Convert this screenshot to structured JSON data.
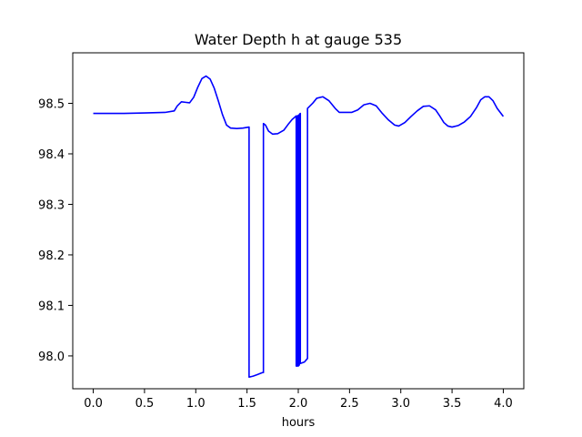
{
  "chart_data": {
    "type": "line",
    "title": "Water Depth h at gauge 535",
    "xlabel": "hours",
    "ylabel": "",
    "xlim": [
      -0.2,
      4.2
    ],
    "ylim": [
      97.935,
      98.6
    ],
    "xticks": [
      0.0,
      0.5,
      1.0,
      1.5,
      2.0,
      2.5,
      3.0,
      3.5,
      4.0
    ],
    "xtick_labels": [
      "0.0",
      "0.5",
      "1.0",
      "1.5",
      "2.0",
      "2.5",
      "3.0",
      "3.5",
      "4.0"
    ],
    "yticks": [
      98.0,
      98.1,
      98.2,
      98.3,
      98.4,
      98.5
    ],
    "ytick_labels": [
      "98.0",
      "98.1",
      "98.2",
      "98.3",
      "98.4",
      "98.5"
    ],
    "grid": false,
    "legend": "none",
    "series": [
      {
        "color": "#0000ff",
        "points": [
          [
            0.0,
            98.48
          ],
          [
            0.3,
            98.48
          ],
          [
            0.5,
            98.481
          ],
          [
            0.7,
            98.482
          ],
          [
            0.79,
            98.485
          ],
          [
            0.82,
            98.495
          ],
          [
            0.86,
            98.503
          ],
          [
            0.9,
            98.502
          ],
          [
            0.94,
            98.501
          ],
          [
            0.98,
            98.512
          ],
          [
            1.02,
            98.532
          ],
          [
            1.06,
            98.549
          ],
          [
            1.1,
            98.554
          ],
          [
            1.14,
            98.548
          ],
          [
            1.18,
            98.53
          ],
          [
            1.22,
            98.505
          ],
          [
            1.26,
            98.478
          ],
          [
            1.3,
            98.457
          ],
          [
            1.34,
            98.451
          ],
          [
            1.4,
            98.45
          ],
          [
            1.46,
            98.451
          ],
          [
            1.52,
            98.453
          ],
          [
            1.52,
            97.958
          ],
          [
            1.56,
            97.96
          ],
          [
            1.6,
            97.963
          ],
          [
            1.65,
            97.967
          ],
          [
            1.66,
            97.967
          ],
          [
            1.66,
            98.46
          ],
          [
            1.68,
            98.457
          ],
          [
            1.71,
            98.445
          ],
          [
            1.75,
            98.439
          ],
          [
            1.8,
            98.44
          ],
          [
            1.86,
            98.447
          ],
          [
            1.9,
            98.458
          ],
          [
            1.94,
            98.468
          ],
          [
            1.98,
            98.475
          ],
          [
            1.98,
            97.98
          ],
          [
            1.99,
            97.98
          ],
          [
            1.99,
            98.475
          ],
          [
            2.0,
            98.476
          ],
          [
            2.0,
            97.98
          ],
          [
            2.01,
            97.982
          ],
          [
            2.01,
            98.478
          ],
          [
            2.02,
            98.48
          ],
          [
            2.02,
            97.985
          ],
          [
            2.06,
            97.988
          ],
          [
            2.09,
            97.995
          ],
          [
            2.09,
            98.49
          ],
          [
            2.14,
            98.5
          ],
          [
            2.18,
            98.51
          ],
          [
            2.24,
            98.513
          ],
          [
            2.3,
            98.505
          ],
          [
            2.36,
            98.49
          ],
          [
            2.4,
            98.482
          ],
          [
            2.46,
            98.482
          ],
          [
            2.52,
            98.482
          ],
          [
            2.58,
            98.487
          ],
          [
            2.64,
            98.497
          ],
          [
            2.7,
            98.5
          ],
          [
            2.76,
            98.495
          ],
          [
            2.82,
            98.48
          ],
          [
            2.88,
            98.467
          ],
          [
            2.94,
            98.457
          ],
          [
            2.98,
            98.455
          ],
          [
            3.04,
            98.462
          ],
          [
            3.1,
            98.474
          ],
          [
            3.16,
            98.485
          ],
          [
            3.22,
            98.494
          ],
          [
            3.28,
            98.495
          ],
          [
            3.34,
            98.487
          ],
          [
            3.38,
            98.475
          ],
          [
            3.42,
            98.462
          ],
          [
            3.46,
            98.455
          ],
          [
            3.5,
            98.453
          ],
          [
            3.56,
            98.456
          ],
          [
            3.62,
            98.463
          ],
          [
            3.68,
            98.474
          ],
          [
            3.74,
            98.492
          ],
          [
            3.78,
            98.507
          ],
          [
            3.82,
            98.513
          ],
          [
            3.86,
            98.513
          ],
          [
            3.9,
            98.505
          ],
          [
            3.94,
            98.49
          ],
          [
            4.0,
            98.474
          ]
        ]
      }
    ]
  }
}
